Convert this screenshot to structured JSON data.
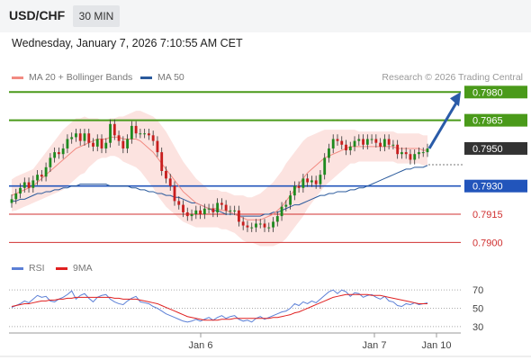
{
  "header": {
    "symbol": "USD/CHF",
    "timeframe": "30 MIN"
  },
  "timestamp": "Wednesday, January 7, 2026 7:10:55 AM CET",
  "legend": {
    "ma20_bb": {
      "label": "MA 20 + Bollinger Bands",
      "color": "#f28b82"
    },
    "ma50": {
      "label": "MA 50",
      "color": "#2a5a9c"
    },
    "credit": "Research © 2026 Trading Central"
  },
  "rsi_legend": {
    "rsi": {
      "label": "RSI",
      "color": "#5b7fd6"
    },
    "ma9": {
      "label": "9MA",
      "color": "#e02020"
    }
  },
  "chart_data": [
    {
      "type": "candlestick",
      "title": "",
      "ylim": [
        0.78925,
        0.79835
      ],
      "levels": [
        {
          "value": 0.798,
          "label": "0.7980",
          "color": "#4a9a1a",
          "kind": "target"
        },
        {
          "value": 0.7965,
          "label": "0.7965",
          "color": "#4a9a1a",
          "kind": "resistance"
        },
        {
          "value": 0.795,
          "label": "0.7950",
          "color": "#333333",
          "kind": "last"
        },
        {
          "value": 0.793,
          "label": "0.7930",
          "color": "#2255bb",
          "kind": "pivot"
        },
        {
          "value": 0.7915,
          "label": "0.7915",
          "color": "#d03030",
          "kind": "support"
        },
        {
          "value": 0.79,
          "label": "0.7900",
          "color": "#d03030",
          "kind": "support"
        }
      ],
      "x_ticks": [
        "Jan 6",
        "Jan 7",
        "Jan 10"
      ],
      "close": [
        0.7923,
        0.7926,
        0.7929,
        0.7932,
        0.7929,
        0.7933,
        0.7936,
        0.7935,
        0.794,
        0.7945,
        0.7948,
        0.7947,
        0.795,
        0.7955,
        0.7956,
        0.7958,
        0.7954,
        0.7958,
        0.7953,
        0.7951,
        0.7955,
        0.795,
        0.7953,
        0.7963,
        0.7957,
        0.7954,
        0.795,
        0.7955,
        0.7962,
        0.7958,
        0.7958,
        0.7958,
        0.7957,
        0.7954,
        0.7948,
        0.7938,
        0.7934,
        0.793,
        0.7922,
        0.792,
        0.7916,
        0.7914,
        0.7915,
        0.7917,
        0.7915,
        0.7918,
        0.7918,
        0.7916,
        0.7921,
        0.792,
        0.7917,
        0.7917,
        0.7917,
        0.7911,
        0.7909,
        0.7908,
        0.7908,
        0.791,
        0.791,
        0.7908,
        0.7908,
        0.7911,
        0.7914,
        0.7919,
        0.792,
        0.7925,
        0.793,
        0.7929,
        0.7934,
        0.7932,
        0.7933,
        0.7931,
        0.7936,
        0.7945,
        0.795,
        0.7955,
        0.7954,
        0.7952,
        0.7949,
        0.7951,
        0.7954,
        0.7955,
        0.7952,
        0.7955,
        0.7955,
        0.7953,
        0.7951,
        0.7955,
        0.7952,
        0.7952,
        0.7947,
        0.7948,
        0.7947,
        0.7944,
        0.7947,
        0.7948,
        0.7948,
        0.795
      ],
      "ma20": [
        0.7925,
        0.7926,
        0.7927,
        0.7928,
        0.7929,
        0.793,
        0.7932,
        0.7934,
        0.7936,
        0.7938,
        0.794,
        0.7942,
        0.7944,
        0.7946,
        0.7948,
        0.795,
        0.7951,
        0.7952,
        0.7953,
        0.7954,
        0.7955,
        0.7955,
        0.7955,
        0.7956,
        0.7956,
        0.7956,
        0.7955,
        0.7955,
        0.7955,
        0.7955,
        0.7954,
        0.7952,
        0.795,
        0.7948,
        0.7945,
        0.7942,
        0.7939,
        0.7936,
        0.7933,
        0.793,
        0.7927,
        0.7925,
        0.7923,
        0.7921,
        0.792,
        0.7919,
        0.7918,
        0.7918,
        0.7918,
        0.7917,
        0.7917,
        0.7916,
        0.7915,
        0.7914,
        0.7913,
        0.7912,
        0.7912,
        0.7912,
        0.7912,
        0.7913,
        0.7914,
        0.7915,
        0.7917,
        0.7919,
        0.7922,
        0.7925,
        0.7928,
        0.7931,
        0.7934,
        0.7937,
        0.7939,
        0.7941,
        0.7943,
        0.7945,
        0.7946,
        0.7947,
        0.7948,
        0.7949,
        0.795,
        0.7951,
        0.7951,
        0.7951,
        0.7951,
        0.7951,
        0.7951,
        0.7951,
        0.7951,
        0.7951,
        0.7951,
        0.7951,
        0.795,
        0.795,
        0.795,
        0.795,
        0.795,
        0.795,
        0.7949,
        0.7949
      ],
      "bb_width": [
        0.00085,
        0.0009,
        0.0009,
        0.0009,
        0.0009,
        0.0009,
        0.001,
        0.0011,
        0.0012,
        0.0013,
        0.0014,
        0.0015,
        0.0016,
        0.0016,
        0.0016,
        0.0016,
        0.0015,
        0.0015,
        0.0013,
        0.0012,
        0.0011,
        0.001,
        0.001,
        0.001,
        0.001,
        0.0011,
        0.0012,
        0.0013,
        0.0014,
        0.0015,
        0.0016,
        0.0017,
        0.0018,
        0.0019,
        0.002,
        0.002,
        0.002,
        0.0019,
        0.0018,
        0.0017,
        0.0016,
        0.0015,
        0.0014,
        0.0013,
        0.0012,
        0.0011,
        0.001,
        0.001,
        0.001,
        0.001,
        0.001,
        0.001,
        0.001,
        0.0011,
        0.0012,
        0.0012,
        0.0012,
        0.0013,
        0.0014,
        0.0015,
        0.0016,
        0.0017,
        0.0018,
        0.0019,
        0.002,
        0.002,
        0.002,
        0.002,
        0.002,
        0.0019,
        0.0018,
        0.0017,
        0.0016,
        0.0015,
        0.0014,
        0.0013,
        0.0012,
        0.0011,
        0.001,
        0.0009,
        0.0009,
        0.0008,
        0.0008,
        0.0008,
        0.0008,
        0.0008,
        0.0008,
        0.0008,
        0.0008,
        0.0008,
        0.0008,
        0.0008,
        0.0008,
        0.0008,
        0.0008,
        0.0008,
        0.0008,
        0.0008
      ],
      "ma50": [
        0.7922,
        0.7922,
        0.7923,
        0.7923,
        0.7924,
        0.7925,
        0.7926,
        0.7926,
        0.7927,
        0.7927,
        0.7928,
        0.7928,
        0.7929,
        0.7929,
        0.793,
        0.793,
        0.7931,
        0.7931,
        0.7931,
        0.7931,
        0.7931,
        0.7931,
        0.7931,
        0.793,
        0.793,
        0.793,
        0.793,
        0.793,
        0.7929,
        0.7929,
        0.7928,
        0.7928,
        0.7927,
        0.7927,
        0.7926,
        0.7926,
        0.7925,
        0.7925,
        0.7924,
        0.7924,
        0.7923,
        0.7922,
        0.7921,
        0.7921,
        0.792,
        0.7919,
        0.7918,
        0.7917,
        0.7917,
        0.7916,
        0.7915,
        0.7915,
        0.7915,
        0.7914,
        0.7914,
        0.7914,
        0.7914,
        0.7914,
        0.7914,
        0.7915,
        0.7915,
        0.7916,
        0.7916,
        0.7917,
        0.7918,
        0.7919,
        0.792,
        0.792,
        0.7921,
        0.7922,
        0.7923,
        0.7924,
        0.7925,
        0.7925,
        0.7926,
        0.7926,
        0.7927,
        0.7927,
        0.7927,
        0.7928,
        0.7928,
        0.7929,
        0.7929,
        0.793,
        0.7931,
        0.7932,
        0.7933,
        0.7934,
        0.7935,
        0.7936,
        0.7937,
        0.7938,
        0.7939,
        0.7939,
        0.794,
        0.794,
        0.794,
        0.7941
      ],
      "forecast": {
        "from": 0.795,
        "to": 0.798
      }
    },
    {
      "type": "line",
      "title": "",
      "ylim": [
        25,
        80
      ],
      "y_ticks": [
        30,
        50,
        70
      ],
      "series": [
        {
          "name": "RSI",
          "values": [
            51,
            53,
            55,
            58,
            56,
            60,
            64,
            62,
            63,
            58,
            57,
            60,
            62,
            65,
            69,
            60,
            64,
            66,
            61,
            57,
            62,
            64,
            65,
            60,
            57,
            55,
            54,
            58,
            61,
            63,
            57,
            56,
            55,
            52,
            50,
            47,
            44,
            42,
            40,
            38,
            36,
            35,
            36,
            38,
            36,
            38,
            40,
            37,
            40,
            42,
            39,
            41,
            42,
            38,
            36,
            37,
            35,
            39,
            41,
            38,
            40,
            42,
            44,
            46,
            47,
            50,
            55,
            53,
            57,
            55,
            58,
            56,
            60,
            64,
            68,
            70,
            66,
            70,
            68,
            63,
            67,
            66,
            62,
            64,
            65,
            62,
            60,
            63,
            58,
            57,
            53,
            52,
            55,
            54,
            56,
            54,
            55,
            56
          ]
        },
        {
          "name": "9MA",
          "values": [
            52,
            53,
            54,
            55,
            55,
            56,
            57,
            58,
            58,
            59,
            59,
            60,
            60,
            61,
            61,
            62,
            62,
            62,
            62,
            62,
            62,
            62,
            62,
            62,
            61,
            61,
            60,
            60,
            60,
            60,
            59,
            58,
            57,
            56,
            55,
            53,
            51,
            49,
            47,
            45,
            43,
            41,
            40,
            39,
            38,
            37,
            37,
            37,
            37,
            38,
            38,
            38,
            39,
            39,
            39,
            39,
            39,
            39,
            39,
            39,
            39,
            40,
            40,
            41,
            42,
            43,
            45,
            46,
            48,
            50,
            52,
            54,
            56,
            58,
            60,
            62,
            63,
            64,
            65,
            65,
            65,
            65,
            65,
            65,
            64,
            64,
            64,
            63,
            62,
            61,
            60,
            59,
            58,
            57,
            56,
            55,
            55,
            55
          ]
        }
      ]
    }
  ]
}
